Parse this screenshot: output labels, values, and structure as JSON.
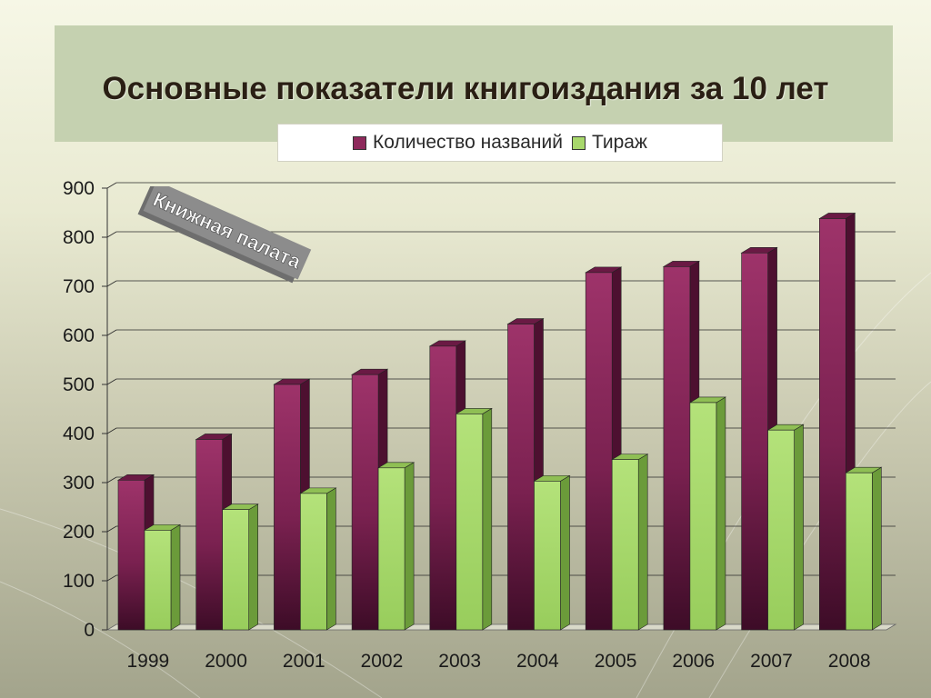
{
  "title": "Основные показатели книгоиздания за 10 лет",
  "watermark_text": "Книжная палата",
  "colors": {
    "series1": "#8e2a5c",
    "series1_dark": "#4d1030",
    "series2": "#a8d86c",
    "series2_dark": "#6b9b3a",
    "title_panel": "#c5d1b0"
  },
  "chart_data": {
    "type": "bar",
    "title": "Основные показатели книгоиздания за 10 лет",
    "categories": [
      "1999",
      "2000",
      "2001",
      "2002",
      "2003",
      "2004",
      "2005",
      "2006",
      "2007",
      "2008"
    ],
    "series": [
      {
        "name": "Количество названий",
        "values": [
          305,
          388,
          500,
          520,
          578,
          623,
          728,
          740,
          768,
          838
        ]
      },
      {
        "name": "Тираж",
        "values": [
          203,
          245,
          278,
          330,
          440,
          303,
          347,
          463,
          407,
          320
        ]
      }
    ],
    "ylim": [
      0,
      900
    ],
    "yticks": [
      "0",
      "100",
      "200",
      "300",
      "400",
      "500",
      "600",
      "700",
      "800",
      "900"
    ],
    "grid": true,
    "legend_position": "top"
  }
}
